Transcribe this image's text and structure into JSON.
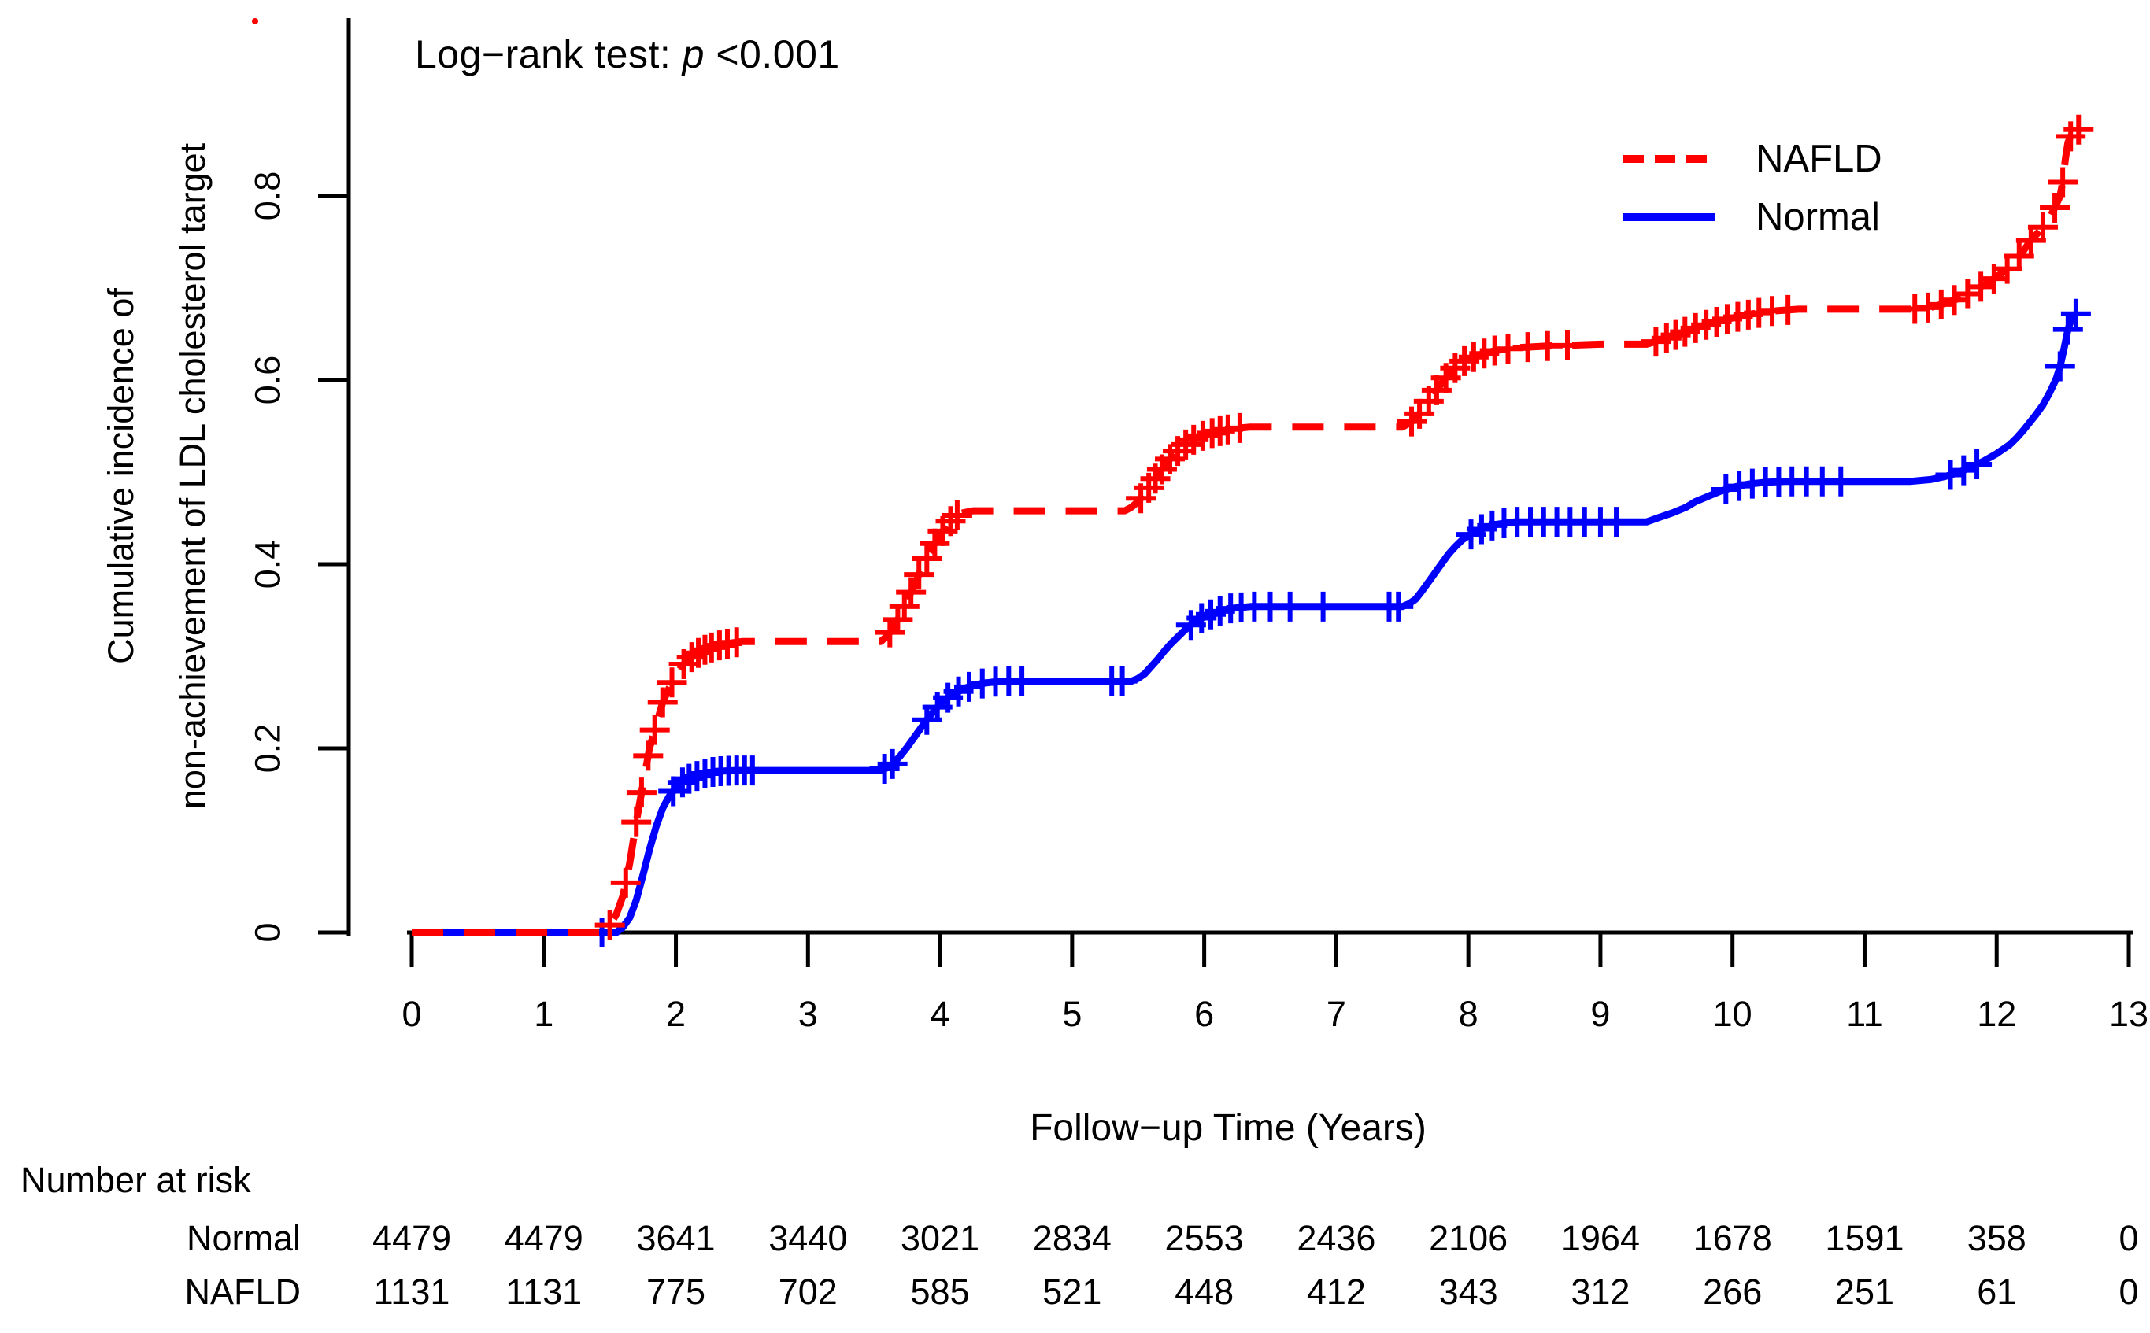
{
  "annotation_parts": {
    "prefix": "Log−rank test: ",
    "p_symbol": "p",
    "value": " <0.001"
  },
  "chart_data": {
    "type": "line",
    "subtype": "kaplan-meier-cumulative-incidence",
    "annotation": "Log−rank test: p <0.001",
    "xlabel": "Follow−up Time (Years)",
    "ylabel_lines": [
      "Cumulative incidence of",
      "non-achievement of LDL cholesterol target"
    ],
    "xlim": [
      0,
      13
    ],
    "ylim": [
      0,
      1
    ],
    "x_ticks": [
      0,
      1,
      2,
      3,
      4,
      5,
      6,
      7,
      8,
      9,
      10,
      11,
      12,
      13
    ],
    "y_ticks": [
      0,
      0.2,
      0.4,
      0.6,
      0.8
    ],
    "grid": false,
    "legend_position": "top-right",
    "series": [
      {
        "name": "NAFLD",
        "color": "#ff0000",
        "line_style": "dashed",
        "points": [
          [
            0,
            0
          ],
          [
            1.42,
            0
          ],
          [
            1.5,
            0.008
          ],
          [
            1.55,
            0.02
          ],
          [
            1.6,
            0.04
          ],
          [
            1.65,
            0.075
          ],
          [
            1.7,
            0.12
          ],
          [
            1.75,
            0.16
          ],
          [
            1.8,
            0.2
          ],
          [
            1.85,
            0.225
          ],
          [
            1.9,
            0.25
          ],
          [
            1.95,
            0.266
          ],
          [
            2.0,
            0.28
          ],
          [
            2.05,
            0.29
          ],
          [
            2.1,
            0.297
          ],
          [
            2.15,
            0.302
          ],
          [
            2.2,
            0.306
          ],
          [
            2.3,
            0.311
          ],
          [
            2.4,
            0.314
          ],
          [
            2.5,
            0.316
          ],
          [
            3.55,
            0.316
          ],
          [
            3.6,
            0.322
          ],
          [
            3.65,
            0.332
          ],
          [
            3.7,
            0.345
          ],
          [
            3.75,
            0.36
          ],
          [
            3.8,
            0.376
          ],
          [
            3.85,
            0.392
          ],
          [
            3.9,
            0.406
          ],
          [
            3.95,
            0.42
          ],
          [
            4.0,
            0.432
          ],
          [
            4.05,
            0.442
          ],
          [
            4.1,
            0.45
          ],
          [
            4.15,
            0.455
          ],
          [
            4.25,
            0.458
          ],
          [
            5.4,
            0.458
          ],
          [
            5.45,
            0.462
          ],
          [
            5.5,
            0.468
          ],
          [
            5.55,
            0.477
          ],
          [
            5.6,
            0.487
          ],
          [
            5.65,
            0.497
          ],
          [
            5.7,
            0.507
          ],
          [
            5.75,
            0.516
          ],
          [
            5.8,
            0.523
          ],
          [
            5.85,
            0.529
          ],
          [
            5.9,
            0.534
          ],
          [
            6.0,
            0.54
          ],
          [
            6.1,
            0.544
          ],
          [
            6.2,
            0.547
          ],
          [
            6.35,
            0.549
          ],
          [
            7.5,
            0.549
          ],
          [
            7.55,
            0.553
          ],
          [
            7.6,
            0.558
          ],
          [
            7.65,
            0.567
          ],
          [
            7.7,
            0.577
          ],
          [
            7.75,
            0.587
          ],
          [
            7.8,
            0.597
          ],
          [
            7.85,
            0.606
          ],
          [
            7.9,
            0.613
          ],
          [
            7.95,
            0.619
          ],
          [
            8.0,
            0.623
          ],
          [
            8.1,
            0.628
          ],
          [
            8.2,
            0.632
          ],
          [
            8.35,
            0.635
          ],
          [
            8.6,
            0.637
          ],
          [
            9.0,
            0.639
          ],
          [
            9.35,
            0.639
          ],
          [
            9.45,
            0.643
          ],
          [
            9.55,
            0.648
          ],
          [
            9.65,
            0.653
          ],
          [
            9.75,
            0.658
          ],
          [
            9.85,
            0.662
          ],
          [
            9.95,
            0.666
          ],
          [
            10.05,
            0.669
          ],
          [
            10.15,
            0.672
          ],
          [
            10.3,
            0.675
          ],
          [
            10.5,
            0.677
          ],
          [
            11.35,
            0.677
          ],
          [
            11.5,
            0.679
          ],
          [
            11.6,
            0.683
          ],
          [
            11.7,
            0.688
          ],
          [
            11.8,
            0.695
          ],
          [
            11.9,
            0.703
          ],
          [
            12.0,
            0.712
          ],
          [
            12.1,
            0.723
          ],
          [
            12.15,
            0.731
          ],
          [
            12.2,
            0.74
          ],
          [
            12.25,
            0.75
          ],
          [
            12.3,
            0.758
          ],
          [
            12.35,
            0.766
          ],
          [
            12.4,
            0.776
          ],
          [
            12.45,
            0.79
          ],
          [
            12.48,
            0.8
          ],
          [
            12.5,
            0.815
          ],
          [
            12.52,
            0.84
          ],
          [
            12.54,
            0.858
          ],
          [
            12.57,
            0.868
          ],
          [
            12.62,
            0.872
          ]
        ],
        "censor_x": [
          1.5,
          1.62,
          1.7,
          1.74,
          1.79,
          1.84,
          1.9,
          1.97,
          2.06,
          2.12,
          2.17,
          2.22,
          2.27,
          2.33,
          2.39,
          2.46,
          3.62,
          3.68,
          3.73,
          3.78,
          3.84,
          3.9,
          3.96,
          4.02,
          4.08,
          4.13,
          5.52,
          5.58,
          5.63,
          5.68,
          5.74,
          5.8,
          5.86,
          5.92,
          5.99,
          6.06,
          6.12,
          6.18,
          6.27,
          7.57,
          7.63,
          7.7,
          7.76,
          7.83,
          7.9,
          7.97,
          8.04,
          8.12,
          8.2,
          8.3,
          8.45,
          8.6,
          8.75,
          9.42,
          9.5,
          9.57,
          9.64,
          9.72,
          9.8,
          9.88,
          9.96,
          10.04,
          10.12,
          10.2,
          10.3,
          10.42,
          11.38,
          11.48,
          11.58,
          11.68,
          11.78,
          11.88,
          11.98,
          12.08,
          12.17,
          12.26,
          12.35,
          12.44,
          12.5,
          12.56,
          12.62
        ]
      },
      {
        "name": "Normal",
        "color": "#0000ff",
        "line_style": "solid",
        "points": [
          [
            0,
            0
          ],
          [
            1.55,
            0
          ],
          [
            1.6,
            0.006
          ],
          [
            1.65,
            0.016
          ],
          [
            1.7,
            0.035
          ],
          [
            1.75,
            0.062
          ],
          [
            1.8,
            0.09
          ],
          [
            1.85,
            0.115
          ],
          [
            1.9,
            0.135
          ],
          [
            1.95,
            0.148
          ],
          [
            2.0,
            0.157
          ],
          [
            2.05,
            0.163
          ],
          [
            2.1,
            0.167
          ],
          [
            2.2,
            0.172
          ],
          [
            2.3,
            0.175
          ],
          [
            2.45,
            0.176
          ],
          [
            3.55,
            0.176
          ],
          [
            3.6,
            0.179
          ],
          [
            3.65,
            0.184
          ],
          [
            3.7,
            0.192
          ],
          [
            3.75,
            0.201
          ],
          [
            3.8,
            0.211
          ],
          [
            3.85,
            0.221
          ],
          [
            3.9,
            0.231
          ],
          [
            3.95,
            0.24
          ],
          [
            4.0,
            0.248
          ],
          [
            4.05,
            0.254
          ],
          [
            4.1,
            0.259
          ],
          [
            4.2,
            0.266
          ],
          [
            4.3,
            0.27
          ],
          [
            4.45,
            0.273
          ],
          [
            5.45,
            0.273
          ],
          [
            5.5,
            0.276
          ],
          [
            5.55,
            0.281
          ],
          [
            5.6,
            0.289
          ],
          [
            5.65,
            0.297
          ],
          [
            5.7,
            0.306
          ],
          [
            5.75,
            0.314
          ],
          [
            5.8,
            0.321
          ],
          [
            5.85,
            0.328
          ],
          [
            5.9,
            0.334
          ],
          [
            5.95,
            0.339
          ],
          [
            6.0,
            0.343
          ],
          [
            6.1,
            0.348
          ],
          [
            6.2,
            0.352
          ],
          [
            6.35,
            0.354
          ],
          [
            7.5,
            0.354
          ],
          [
            7.55,
            0.357
          ],
          [
            7.6,
            0.362
          ],
          [
            7.65,
            0.371
          ],
          [
            7.7,
            0.381
          ],
          [
            7.75,
            0.391
          ],
          [
            7.8,
            0.401
          ],
          [
            7.85,
            0.411
          ],
          [
            7.9,
            0.419
          ],
          [
            7.95,
            0.426
          ],
          [
            8.0,
            0.431
          ],
          [
            8.1,
            0.438
          ],
          [
            8.2,
            0.443
          ],
          [
            8.35,
            0.446
          ],
          [
            9.35,
            0.446
          ],
          [
            9.45,
            0.451
          ],
          [
            9.55,
            0.456
          ],
          [
            9.65,
            0.462
          ],
          [
            9.72,
            0.468
          ],
          [
            9.82,
            0.474
          ],
          [
            9.92,
            0.48
          ],
          [
            10.02,
            0.484
          ],
          [
            10.12,
            0.487
          ],
          [
            10.25,
            0.489
          ],
          [
            10.4,
            0.49
          ],
          [
            11.35,
            0.49
          ],
          [
            11.5,
            0.492
          ],
          [
            11.6,
            0.495
          ],
          [
            11.7,
            0.499
          ],
          [
            11.8,
            0.505
          ],
          [
            11.9,
            0.512
          ],
          [
            12.0,
            0.52
          ],
          [
            12.1,
            0.53
          ],
          [
            12.15,
            0.537
          ],
          [
            12.2,
            0.545
          ],
          [
            12.25,
            0.554
          ],
          [
            12.3,
            0.563
          ],
          [
            12.35,
            0.573
          ],
          [
            12.4,
            0.586
          ],
          [
            12.45,
            0.601
          ],
          [
            12.48,
            0.615
          ],
          [
            12.51,
            0.634
          ],
          [
            12.54,
            0.655
          ],
          [
            12.57,
            0.668
          ],
          [
            12.6,
            0.672
          ]
        ],
        "censor_x": [
          1.44,
          1.98,
          2.05,
          2.1,
          2.16,
          2.22,
          2.28,
          2.34,
          2.4,
          2.46,
          2.52,
          2.58,
          3.58,
          3.64,
          3.9,
          3.98,
          4.06,
          4.14,
          4.22,
          4.32,
          4.42,
          4.52,
          4.62,
          5.3,
          5.38,
          5.9,
          5.98,
          6.05,
          6.12,
          6.2,
          6.28,
          6.38,
          6.5,
          6.65,
          6.9,
          7.4,
          7.47,
          8.02,
          8.1,
          8.18,
          8.27,
          8.37,
          8.47,
          8.57,
          8.67,
          8.77,
          8.88,
          9.0,
          9.12,
          9.95,
          10.05,
          10.15,
          10.25,
          10.35,
          10.45,
          10.56,
          10.68,
          10.82,
          11.65,
          11.75,
          11.85,
          12.48,
          12.54,
          12.6
        ]
      }
    ]
  },
  "risk_table": {
    "title": "Number at risk",
    "time_points": [
      0,
      1,
      2,
      3,
      4,
      5,
      6,
      7,
      8,
      9,
      10,
      11,
      12,
      13
    ],
    "rows": [
      {
        "label": "Normal",
        "counts": [
          "4479",
          "4479",
          "3641",
          "3440",
          "3021",
          "2834",
          "2553",
          "2436",
          "2106",
          "1964",
          "1678",
          "1591",
          "358",
          "0"
        ]
      },
      {
        "label": "NAFLD",
        "counts": [
          "1131",
          "1131",
          "775",
          "702",
          "585",
          "521",
          "448",
          "412",
          "343",
          "312",
          "266",
          "251",
          "61",
          "0"
        ]
      }
    ]
  }
}
